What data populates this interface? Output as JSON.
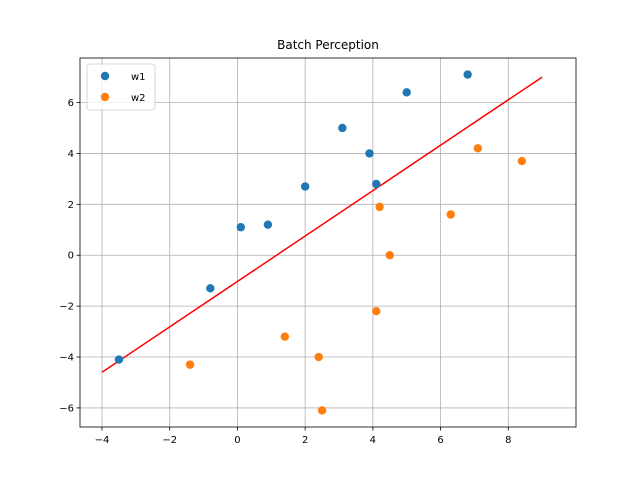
{
  "chart_data": {
    "type": "scatter",
    "title": "Batch Perception",
    "xlabel": "",
    "ylabel": "",
    "xlim": [
      -4.65,
      10.0
    ],
    "ylim": [
      -6.75,
      7.75
    ],
    "xticks": [
      -4,
      -2,
      0,
      2,
      4,
      6,
      8
    ],
    "yticks": [
      -6,
      -4,
      -2,
      0,
      2,
      4,
      6
    ],
    "xtick_labels": [
      "−4",
      "−2",
      "0",
      "2",
      "4",
      "6",
      "8"
    ],
    "ytick_labels": [
      "−6",
      "−4",
      "−2",
      "0",
      "2",
      "4",
      "6"
    ],
    "grid": true,
    "legend_position": "top-left",
    "series": [
      {
        "name": "w1",
        "color": "#1f77b4",
        "points": [
          {
            "x": -3.5,
            "y": -4.1
          },
          {
            "x": -0.8,
            "y": -1.3
          },
          {
            "x": 0.1,
            "y": 1.1
          },
          {
            "x": 0.9,
            "y": 1.2
          },
          {
            "x": 2.0,
            "y": 2.7
          },
          {
            "x": 3.1,
            "y": 5.0
          },
          {
            "x": 3.9,
            "y": 4.0
          },
          {
            "x": 4.1,
            "y": 2.8
          },
          {
            "x": 5.0,
            "y": 6.4
          },
          {
            "x": 6.8,
            "y": 7.1
          }
        ]
      },
      {
        "name": "w2",
        "color": "#ff7f0e",
        "points": [
          {
            "x": -1.4,
            "y": -4.3
          },
          {
            "x": 1.4,
            "y": -3.2
          },
          {
            "x": 2.4,
            "y": -4.0
          },
          {
            "x": 2.5,
            "y": -6.1
          },
          {
            "x": 4.1,
            "y": -2.2
          },
          {
            "x": 4.2,
            "y": 1.9
          },
          {
            "x": 4.5,
            "y": 0.0
          },
          {
            "x": 6.3,
            "y": 1.6
          },
          {
            "x": 7.1,
            "y": 4.2
          },
          {
            "x": 8.4,
            "y": 3.7
          }
        ]
      }
    ],
    "line": {
      "color": "#ff0000",
      "points": [
        {
          "x": -4.0,
          "y": -4.6
        },
        {
          "x": 9.0,
          "y": 7.0
        }
      ]
    }
  }
}
